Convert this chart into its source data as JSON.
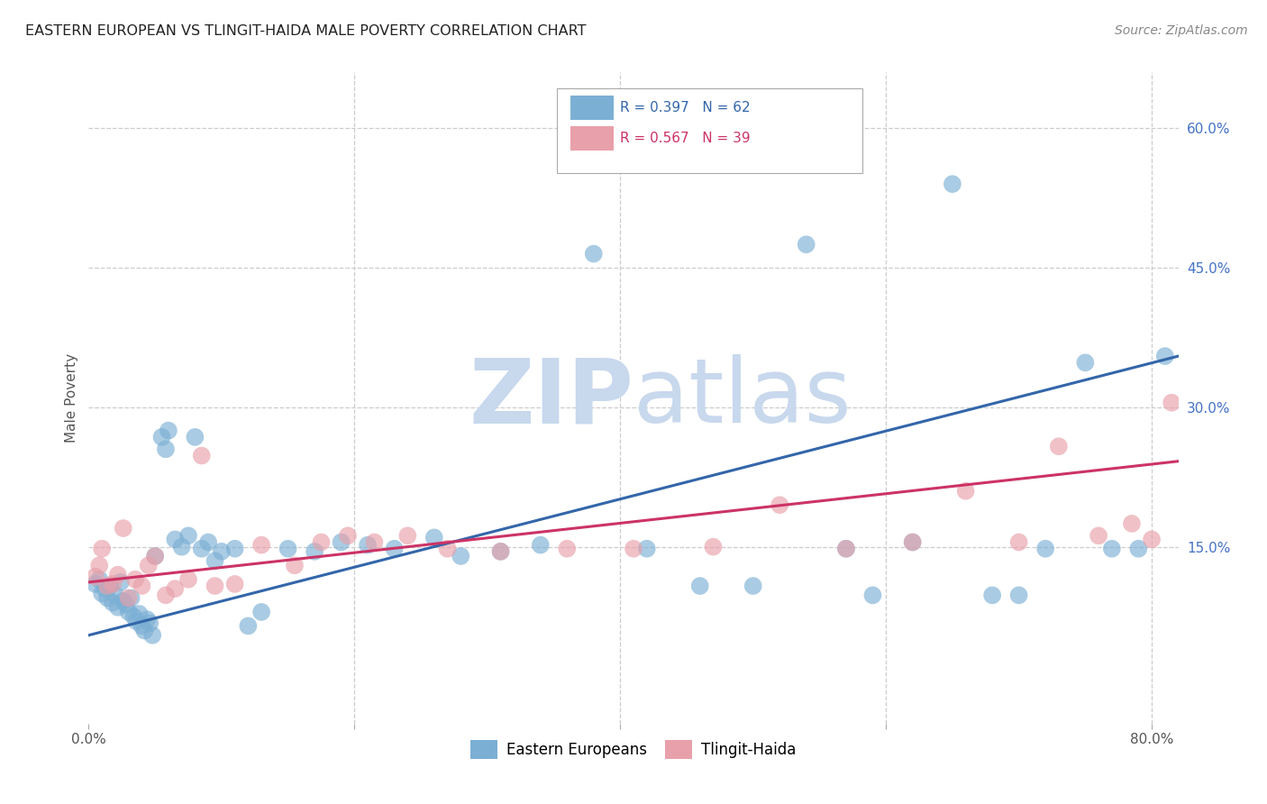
{
  "title": "EASTERN EUROPEAN VS TLINGIT-HAIDA MALE POVERTY CORRELATION CHART",
  "source": "Source: ZipAtlas.com",
  "ylabel": "Male Poverty",
  "xlim": [
    0.0,
    0.82
  ],
  "ylim": [
    -0.04,
    0.66
  ],
  "xticks": [
    0.0,
    0.2,
    0.4,
    0.6,
    0.8
  ],
  "xticklabels": [
    "0.0%",
    "",
    "",
    "",
    "80.0%"
  ],
  "yticks": [
    0.15,
    0.3,
    0.45,
    0.6
  ],
  "yticklabels": [
    "15.0%",
    "30.0%",
    "45.0%",
    "60.0%"
  ],
  "legend_labels": [
    "Eastern Europeans",
    "Tlingit-Haida"
  ],
  "legend_R_blue": "R = 0.397",
  "legend_N_blue": "N = 62",
  "legend_R_pink": "R = 0.567",
  "legend_N_pink": "N = 39",
  "blue_color": "#7bafd4",
  "pink_color": "#e8a0aa",
  "blue_line_color": "#3366aa",
  "pink_line_color": "#cc3366",
  "watermark_color": "#c8d8ed",
  "blue_points_x": [
    0.005,
    0.008,
    0.01,
    0.012,
    0.014,
    0.016,
    0.018,
    0.02,
    0.022,
    0.024,
    0.026,
    0.028,
    0.03,
    0.032,
    0.034,
    0.036,
    0.038,
    0.04,
    0.042,
    0.044,
    0.046,
    0.048,
    0.05,
    0.055,
    0.058,
    0.06,
    0.065,
    0.07,
    0.075,
    0.08,
    0.085,
    0.09,
    0.095,
    0.1,
    0.11,
    0.12,
    0.13,
    0.15,
    0.17,
    0.19,
    0.21,
    0.23,
    0.26,
    0.28,
    0.31,
    0.34,
    0.38,
    0.42,
    0.46,
    0.5,
    0.54,
    0.57,
    0.59,
    0.62,
    0.65,
    0.68,
    0.7,
    0.72,
    0.75,
    0.77,
    0.79,
    0.81
  ],
  "blue_points_y": [
    0.11,
    0.115,
    0.1,
    0.105,
    0.095,
    0.108,
    0.09,
    0.098,
    0.085,
    0.112,
    0.092,
    0.088,
    0.08,
    0.095,
    0.075,
    0.07,
    0.078,
    0.065,
    0.06,
    0.072,
    0.068,
    0.055,
    0.14,
    0.268,
    0.255,
    0.275,
    0.158,
    0.15,
    0.162,
    0.268,
    0.148,
    0.155,
    0.135,
    0.145,
    0.148,
    0.065,
    0.08,
    0.148,
    0.145,
    0.155,
    0.152,
    0.148,
    0.16,
    0.14,
    0.145,
    0.152,
    0.465,
    0.148,
    0.108,
    0.108,
    0.475,
    0.148,
    0.098,
    0.155,
    0.54,
    0.098,
    0.098,
    0.148,
    0.348,
    0.148,
    0.148,
    0.355
  ],
  "pink_points_x": [
    0.005,
    0.008,
    0.01,
    0.014,
    0.018,
    0.022,
    0.026,
    0.03,
    0.035,
    0.04,
    0.045,
    0.05,
    0.058,
    0.065,
    0.075,
    0.085,
    0.095,
    0.11,
    0.13,
    0.155,
    0.175,
    0.195,
    0.215,
    0.24,
    0.27,
    0.31,
    0.36,
    0.41,
    0.47,
    0.52,
    0.57,
    0.62,
    0.66,
    0.7,
    0.73,
    0.76,
    0.785,
    0.8,
    0.815
  ],
  "pink_points_y": [
    0.118,
    0.13,
    0.148,
    0.108,
    0.11,
    0.12,
    0.17,
    0.095,
    0.115,
    0.108,
    0.13,
    0.14,
    0.098,
    0.105,
    0.115,
    0.248,
    0.108,
    0.11,
    0.152,
    0.13,
    0.155,
    0.162,
    0.155,
    0.162,
    0.148,
    0.145,
    0.148,
    0.148,
    0.15,
    0.195,
    0.148,
    0.155,
    0.21,
    0.155,
    0.258,
    0.162,
    0.175,
    0.158,
    0.305
  ],
  "blue_trendline": [
    0.0,
    0.055,
    0.82,
    0.355
  ],
  "pink_trendline": [
    0.0,
    0.112,
    0.82,
    0.242
  ]
}
